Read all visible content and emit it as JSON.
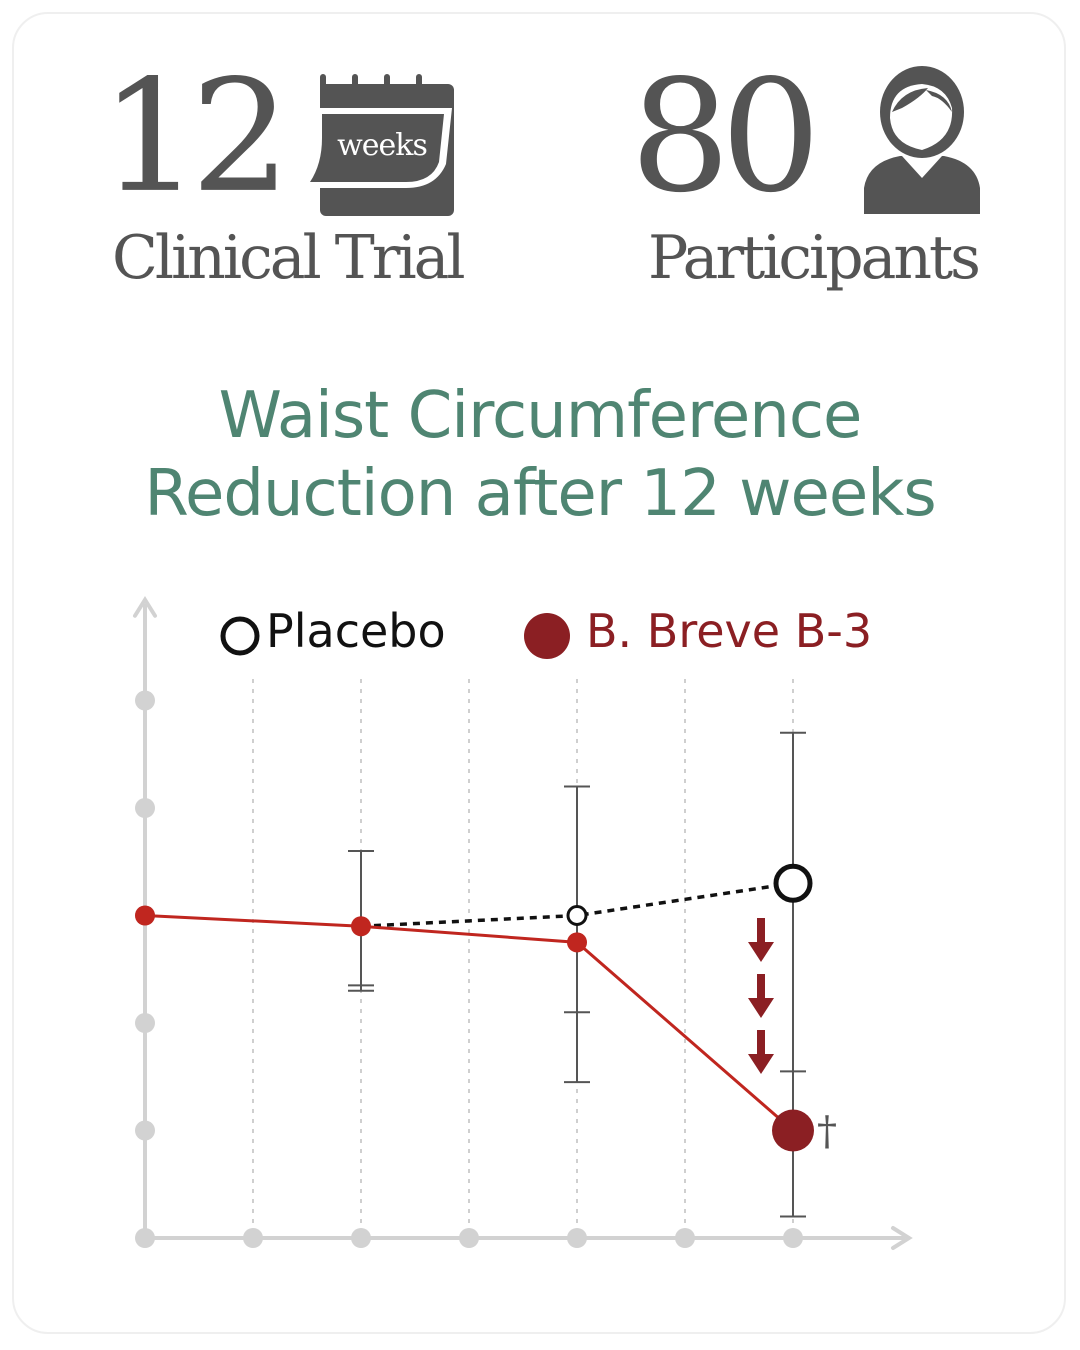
{
  "header": {
    "trial_number": "12",
    "trial_badge": "weeks",
    "trial_label": "Clinical Trial",
    "participants_number": "80",
    "participants_label": "Participants",
    "calendar_icon": "calendar-icon",
    "person_icon": "person-icon"
  },
  "title": {
    "line1": "Waist Circumference",
    "line2": "Reduction after 12 weeks",
    "color": "#4f8572"
  },
  "legend": {
    "placebo_label": "Placebo",
    "treatment_label": "B. Breve B-3"
  },
  "colors": {
    "treatment": "#8b1f23",
    "treatment_line": "#c0261f",
    "placebo": "#111111",
    "axis": "#d2d2d2",
    "error_bar": "#555555"
  },
  "chart_data": {
    "type": "line",
    "x": [
      0,
      1,
      2,
      3,
      4,
      5,
      6
    ],
    "ylim": [
      0,
      5
    ],
    "grid": true,
    "legend": "top",
    "markers": {
      "arrows_under_placebo_end": 3,
      "significance_symbol": "†"
    },
    "series": [
      {
        "name": "Placebo",
        "style": "dashed",
        "marker": "open-circle",
        "points": [
          {
            "x": 2,
            "y": 2.9
          },
          {
            "x": 4,
            "y": 3.0
          },
          {
            "x": 6,
            "y": 3.3
          }
        ]
      },
      {
        "name": "B. Breve B-3",
        "style": "solid",
        "marker": "filled-circle",
        "points": [
          {
            "x": 0,
            "y": 3.0
          },
          {
            "x": 2,
            "y": 2.9
          },
          {
            "x": 4,
            "y": 2.75
          },
          {
            "x": 6,
            "y": 1.0
          }
        ]
      }
    ],
    "error_bars": [
      {
        "x": 2,
        "upper": 3.6,
        "lower": 2.3,
        "tick_y": [
          2.35
        ]
      },
      {
        "x": 4,
        "upper": 4.2,
        "lower": 1.45,
        "tick_y": [
          2.1
        ]
      },
      {
        "x": 6,
        "upper": 4.7,
        "lower": 0.2,
        "tick_y": [
          1.55
        ]
      }
    ]
  }
}
